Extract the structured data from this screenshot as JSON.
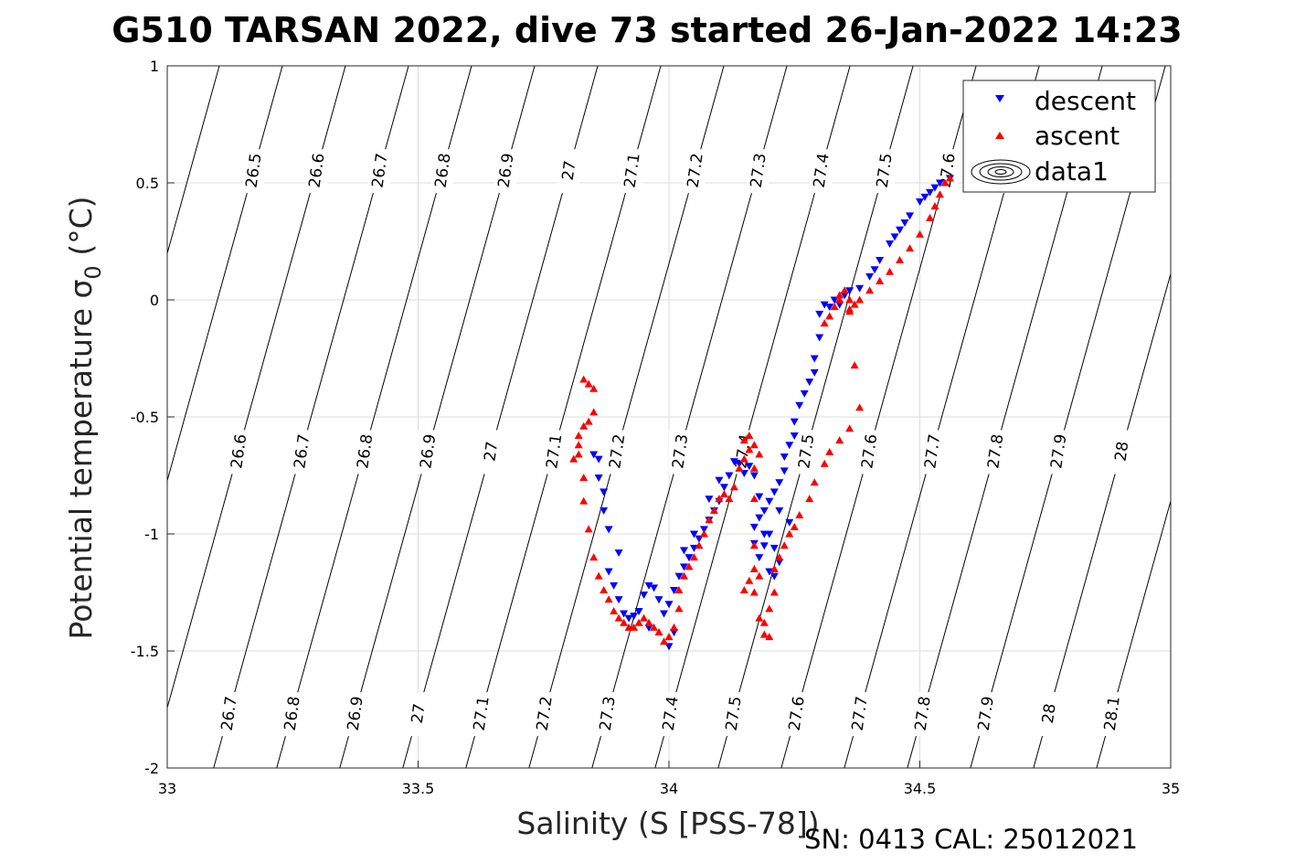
{
  "chart_data": {
    "type": "scatter",
    "title": "G510 TARSAN 2022, dive 73 started 26-Jan-2022 14:23",
    "xlabel": "Salinity (S [PSS-78])",
    "ylabel_prefix": "Potential temperature ",
    "ylabel_sigma": "σ",
    "ylabel_sub": "0",
    "ylabel_suffix": " (°C)",
    "xlim": [
      33,
      35
    ],
    "ylim": [
      -2,
      1
    ],
    "x_ticks": [
      "33",
      "33.5",
      "34",
      "34.5",
      "35"
    ],
    "y_ticks": [
      "1",
      "0.5",
      "0",
      "-0.5",
      "-1",
      "-1.5",
      "-2"
    ],
    "grid": true,
    "legend_position": "top-right",
    "legend": [
      "descent",
      "ascent",
      "data1"
    ],
    "footer": "SN: 0413  CAL: 25012021",
    "colors": {
      "descent": "#0000ff",
      "ascent": "#ff0000",
      "contour": "#000000",
      "grid": "#dcdcdc"
    },
    "contour_labels": {
      "top": [
        "26.5",
        "26.6",
        "26.7",
        "26.8",
        "26.9",
        "27",
        "27.1",
        "27.2",
        "27.3",
        "27.4",
        "27.5",
        "27.6",
        "27.7"
      ],
      "middle": [
        "26.6",
        "26.7",
        "26.8",
        "26.9",
        "27",
        "27.1",
        "27.2",
        "27.3",
        "27.4",
        "27.5",
        "27.6",
        "27.7",
        "27.8",
        "27.9",
        "28",
        "28.1"
      ],
      "bottom": [
        "26.6",
        "26.7",
        "26.8",
        "26.9",
        "27",
        "27.1",
        "27.2",
        "27.3",
        "27.4",
        "27.5",
        "27.6",
        "27.7",
        "27.8",
        "27.9",
        "28",
        "28.1"
      ]
    },
    "series": [
      {
        "name": "descent",
        "marker": "triangle-down",
        "points": [
          [
            34.56,
            0.52
          ],
          [
            34.54,
            0.5
          ],
          [
            34.52,
            0.46
          ],
          [
            34.5,
            0.42
          ],
          [
            34.48,
            0.36
          ],
          [
            34.46,
            0.3
          ],
          [
            34.44,
            0.24
          ],
          [
            34.42,
            0.17
          ],
          [
            34.4,
            0.1
          ],
          [
            34.38,
            0.05
          ],
          [
            34.36,
            0.04
          ],
          [
            34.35,
            0.02
          ],
          [
            34.34,
            -0.02
          ],
          [
            34.33,
            0.0
          ],
          [
            34.32,
            -0.03
          ],
          [
            34.31,
            -0.02
          ],
          [
            34.3,
            -0.06
          ],
          [
            34.3,
            -0.16
          ],
          [
            34.29,
            -0.25
          ],
          [
            34.29,
            -0.31
          ],
          [
            34.28,
            -0.35
          ],
          [
            34.27,
            -0.4
          ],
          [
            34.26,
            -0.45
          ],
          [
            34.25,
            -0.52
          ],
          [
            34.25,
            -0.58
          ],
          [
            34.24,
            -0.62
          ],
          [
            34.23,
            -0.67
          ],
          [
            34.23,
            -0.73
          ],
          [
            34.22,
            -0.78
          ],
          [
            34.21,
            -0.82
          ],
          [
            34.2,
            -0.86
          ],
          [
            34.19,
            -0.9
          ],
          [
            34.18,
            -0.93
          ],
          [
            34.17,
            -0.97
          ],
          [
            34.17,
            -1.04
          ],
          [
            34.18,
            -1.1
          ],
          [
            34.19,
            -1.05
          ],
          [
            34.2,
            -1.0
          ],
          [
            34.21,
            -1.06
          ],
          [
            34.22,
            -1.12
          ],
          [
            34.21,
            -1.18
          ],
          [
            34.2,
            -1.16
          ],
          [
            34.19,
            -1.0
          ],
          [
            34.18,
            -0.84
          ],
          [
            34.17,
            -0.75
          ],
          [
            34.16,
            -0.71
          ],
          [
            34.15,
            -0.74
          ],
          [
            34.14,
            -0.7
          ],
          [
            34.13,
            -0.69
          ],
          [
            34.12,
            -0.75
          ],
          [
            34.11,
            -0.8
          ],
          [
            34.1,
            -0.86
          ],
          [
            34.09,
            -0.9
          ],
          [
            34.08,
            -0.94
          ],
          [
            34.07,
            -0.98
          ],
          [
            34.06,
            -1.02
          ],
          [
            34.05,
            -1.06
          ],
          [
            34.04,
            -1.1
          ],
          [
            34.03,
            -1.14
          ],
          [
            34.02,
            -1.18
          ],
          [
            34.01,
            -1.24
          ],
          [
            34.0,
            -1.3
          ],
          [
            33.99,
            -1.34
          ],
          [
            33.98,
            -1.28
          ],
          [
            33.97,
            -1.23
          ],
          [
            33.96,
            -1.22
          ],
          [
            33.95,
            -1.26
          ],
          [
            33.94,
            -1.33
          ],
          [
            33.93,
            -1.35
          ],
          [
            33.92,
            -1.36
          ],
          [
            33.91,
            -1.34
          ],
          [
            33.9,
            -1.28
          ],
          [
            33.89,
            -1.22
          ],
          [
            33.88,
            -1.16
          ],
          [
            33.9,
            -1.08
          ],
          [
            33.88,
            -0.98
          ],
          [
            33.87,
            -0.9
          ],
          [
            33.87,
            -0.82
          ],
          [
            33.86,
            -0.76
          ],
          [
            33.86,
            -0.68
          ],
          [
            33.85,
            -0.66
          ],
          [
            34.0,
            -1.48
          ],
          [
            34.01,
            -1.42
          ],
          [
            33.96,
            -1.4
          ],
          [
            34.24,
            -0.95
          ],
          [
            34.22,
            -0.9
          ],
          [
            34.1,
            -0.77
          ],
          [
            34.08,
            -0.85
          ],
          [
            34.05,
            -1.0
          ],
          [
            34.03,
            -1.07
          ],
          [
            34.45,
            0.27
          ],
          [
            34.47,
            0.33
          ],
          [
            34.51,
            0.44
          ],
          [
            34.53,
            0.48
          ],
          [
            34.41,
            0.13
          ]
        ]
      },
      {
        "name": "ascent",
        "marker": "triangle-up",
        "points": [
          [
            34.56,
            0.52
          ],
          [
            34.55,
            0.5
          ],
          [
            34.54,
            0.45
          ],
          [
            34.53,
            0.4
          ],
          [
            34.52,
            0.35
          ],
          [
            34.5,
            0.28
          ],
          [
            34.48,
            0.22
          ],
          [
            34.46,
            0.17
          ],
          [
            34.44,
            0.12
          ],
          [
            34.42,
            0.08
          ],
          [
            34.4,
            0.04
          ],
          [
            34.38,
            0.0
          ],
          [
            34.37,
            -0.02
          ],
          [
            34.36,
            -0.04
          ],
          [
            34.36,
            0.0
          ],
          [
            34.35,
            0.04
          ],
          [
            34.34,
            0.0
          ],
          [
            34.33,
            -0.03
          ],
          [
            34.32,
            -0.07
          ],
          [
            34.31,
            -0.1
          ],
          [
            34.37,
            -0.28
          ],
          [
            34.38,
            -0.46
          ],
          [
            34.36,
            -0.55
          ],
          [
            34.34,
            -0.6
          ],
          [
            34.32,
            -0.65
          ],
          [
            34.31,
            -0.7
          ],
          [
            34.29,
            -0.78
          ],
          [
            34.28,
            -0.85
          ],
          [
            34.26,
            -0.92
          ],
          [
            34.25,
            -0.97
          ],
          [
            34.24,
            -1.0
          ],
          [
            34.23,
            -1.05
          ],
          [
            34.22,
            -1.1
          ],
          [
            34.21,
            -1.15
          ],
          [
            34.21,
            -1.25
          ],
          [
            34.2,
            -1.32
          ],
          [
            34.19,
            -1.38
          ],
          [
            34.19,
            -1.43
          ],
          [
            34.2,
            -1.44
          ],
          [
            34.18,
            -1.36
          ],
          [
            34.17,
            -1.25
          ],
          [
            34.17,
            -1.15
          ],
          [
            34.18,
            -1.18
          ],
          [
            34.16,
            -1.2
          ],
          [
            34.15,
            -1.24
          ],
          [
            34.17,
            -1.05
          ],
          [
            34.17,
            -0.85
          ],
          [
            34.17,
            -0.72
          ],
          [
            34.16,
            -0.64
          ],
          [
            34.15,
            -0.6
          ],
          [
            34.16,
            -0.58
          ],
          [
            34.17,
            -0.62
          ],
          [
            34.18,
            -0.66
          ],
          [
            34.15,
            -0.68
          ],
          [
            34.14,
            -0.72
          ],
          [
            34.13,
            -0.8
          ],
          [
            34.12,
            -0.85
          ],
          [
            34.11,
            -0.83
          ],
          [
            34.1,
            -0.85
          ],
          [
            34.09,
            -0.9
          ],
          [
            34.08,
            -0.94
          ],
          [
            34.07,
            -1.0
          ],
          [
            34.06,
            -1.05
          ],
          [
            34.05,
            -1.1
          ],
          [
            34.04,
            -1.14
          ],
          [
            34.03,
            -1.18
          ],
          [
            34.02,
            -1.24
          ],
          [
            34.02,
            -1.32
          ],
          [
            34.01,
            -1.4
          ],
          [
            34.0,
            -1.44
          ],
          [
            33.99,
            -1.46
          ],
          [
            33.98,
            -1.42
          ],
          [
            33.97,
            -1.4
          ],
          [
            33.96,
            -1.38
          ],
          [
            33.95,
            -1.36
          ],
          [
            33.94,
            -1.38
          ],
          [
            33.93,
            -1.4
          ],
          [
            33.92,
            -1.4
          ],
          [
            33.91,
            -1.38
          ],
          [
            33.9,
            -1.36
          ],
          [
            33.89,
            -1.33
          ],
          [
            33.88,
            -1.28
          ],
          [
            33.87,
            -1.24
          ],
          [
            33.86,
            -1.18
          ],
          [
            33.85,
            -1.1
          ],
          [
            33.84,
            -0.98
          ],
          [
            33.83,
            -0.86
          ],
          [
            33.83,
            -0.76
          ],
          [
            33.82,
            -0.66
          ],
          [
            33.82,
            -0.58
          ],
          [
            33.83,
            -0.54
          ],
          [
            33.84,
            -0.52
          ],
          [
            33.85,
            -0.48
          ],
          [
            33.85,
            -0.38
          ],
          [
            33.84,
            -0.36
          ],
          [
            33.83,
            -0.34
          ],
          [
            33.82,
            -0.62
          ],
          [
            33.81,
            -0.68
          ],
          [
            34.36,
            -0.05
          ],
          [
            34.34,
            0.02
          ]
        ]
      }
    ]
  }
}
